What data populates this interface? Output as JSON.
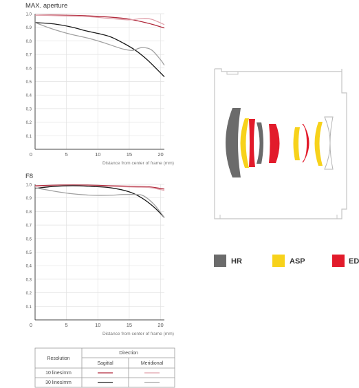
{
  "charts": [
    {
      "title": "MAX. aperture",
      "chart_data": {
        "type": "line",
        "title": "MAX. aperture",
        "xlabel": "Distance from center of frame (mm)",
        "ylabel": "",
        "xlim": [
          0,
          20.6
        ],
        "ylim": [
          0,
          1.0
        ],
        "x_ticks": [
          "0",
          "5",
          "10",
          "15",
          "20"
        ],
        "y_ticks": [
          "0.1",
          "0.2",
          "0.3",
          "0.4",
          "0.5",
          "0.6",
          "0.7",
          "0.8",
          "0.9",
          "1.0"
        ],
        "grid": true,
        "series": [
          {
            "resolution": "10 lines/mm",
            "direction": "Sagittal",
            "color": "#b0283a",
            "points": [
              [
                0,
                0.99
              ],
              [
                4,
                0.99
              ],
              [
                8,
                0.985
              ],
              [
                12,
                0.975
              ],
              [
                15,
                0.96
              ],
              [
                18,
                0.93
              ],
              [
                20.6,
                0.895
              ]
            ]
          },
          {
            "resolution": "10 lines/mm",
            "direction": "Meridional",
            "color": "#e0a0aa",
            "points": [
              [
                0,
                0.99
              ],
              [
                4,
                0.985
              ],
              [
                8,
                0.98
              ],
              [
                12,
                0.965
              ],
              [
                15,
                0.955
              ],
              [
                17,
                0.965
              ],
              [
                18.5,
                0.96
              ],
              [
                20.6,
                0.92
              ]
            ]
          },
          {
            "resolution": "30 lines/mm",
            "direction": "Sagittal",
            "color": "#1a1a1a",
            "points": [
              [
                0,
                0.935
              ],
              [
                3,
                0.925
              ],
              [
                6,
                0.9
              ],
              [
                8,
                0.875
              ],
              [
                10,
                0.855
              ],
              [
                12,
                0.83
              ],
              [
                14,
                0.785
              ],
              [
                16,
                0.73
              ],
              [
                18,
                0.655
              ],
              [
                20.6,
                0.535
              ]
            ]
          },
          {
            "resolution": "30 lines/mm",
            "direction": "Meridional",
            "color": "#a0a0a0",
            "points": [
              [
                0,
                0.935
              ],
              [
                2,
                0.9
              ],
              [
                4,
                0.87
              ],
              [
                6,
                0.845
              ],
              [
                8,
                0.825
              ],
              [
                10,
                0.8
              ],
              [
                12,
                0.77
              ],
              [
                14,
                0.74
              ],
              [
                15.5,
                0.73
              ],
              [
                17,
                0.75
              ],
              [
                18.5,
                0.735
              ],
              [
                20,
                0.66
              ],
              [
                20.6,
                0.62
              ]
            ]
          }
        ]
      }
    },
    {
      "title": "F8",
      "chart_data": {
        "type": "line",
        "title": "F8",
        "xlabel": "Distance from center of frame (mm)",
        "ylabel": "",
        "xlim": [
          0,
          20.6
        ],
        "ylim": [
          0,
          1.0
        ],
        "x_ticks": [
          "0",
          "5",
          "10",
          "15",
          "20"
        ],
        "y_ticks": [
          "0.1",
          "0.2",
          "0.3",
          "0.4",
          "0.5",
          "0.6",
          "0.7",
          "0.8",
          "0.9",
          "1.0"
        ],
        "grid": true,
        "series": [
          {
            "resolution": "10 lines/mm",
            "direction": "Sagittal",
            "color": "#b0283a",
            "points": [
              [
                0,
                0.99
              ],
              [
                4,
                0.995
              ],
              [
                8,
                0.995
              ],
              [
                12,
                0.99
              ],
              [
                16,
                0.985
              ],
              [
                18.5,
                0.98
              ],
              [
                20.6,
                0.965
              ]
            ]
          },
          {
            "resolution": "10 lines/mm",
            "direction": "Meridional",
            "color": "#e0a0aa",
            "points": [
              [
                0,
                0.985
              ],
              [
                4,
                0.99
              ],
              [
                8,
                0.99
              ],
              [
                12,
                0.985
              ],
              [
                16,
                0.98
              ],
              [
                18.5,
                0.975
              ],
              [
                20.6,
                0.955
              ]
            ]
          },
          {
            "resolution": "30 lines/mm",
            "direction": "Sagittal",
            "color": "#1a1a1a",
            "points": [
              [
                0,
                0.97
              ],
              [
                3,
                0.985
              ],
              [
                6,
                0.99
              ],
              [
                9,
                0.985
              ],
              [
                12,
                0.975
              ],
              [
                15,
                0.945
              ],
              [
                17,
                0.9
              ],
              [
                19,
                0.83
              ],
              [
                20.6,
                0.755
              ]
            ]
          },
          {
            "resolution": "30 lines/mm",
            "direction": "Meridional",
            "color": "#a0a0a0",
            "points": [
              [
                0,
                0.975
              ],
              [
                3,
                0.95
              ],
              [
                6,
                0.93
              ],
              [
                9,
                0.92
              ],
              [
                12,
                0.92
              ],
              [
                14,
                0.925
              ],
              [
                16,
                0.925
              ],
              [
                17.3,
                0.915
              ],
              [
                19,
                0.85
              ],
              [
                20.6,
                0.755
              ]
            ]
          }
        ]
      }
    }
  ],
  "legend_table": {
    "resolution_header": "Resolution",
    "direction_header": "Direction",
    "sagittal_header": "Sagittal",
    "meridional_header": "Meridional",
    "rows": [
      {
        "label": "10 lines/mm",
        "sagittal_color": "#b0283a",
        "meridional_color": "#e0a0aa"
      },
      {
        "label": "30 lines/mm",
        "sagittal_color": "#1a1a1a",
        "meridional_color": "#a0a0a0"
      }
    ]
  },
  "lens_legend": [
    {
      "label": "HR",
      "color": "#6b6b6b"
    },
    {
      "label": "ASP",
      "color": "#f7d21b"
    },
    {
      "label": "ED",
      "color": "#e21b2b"
    }
  ]
}
